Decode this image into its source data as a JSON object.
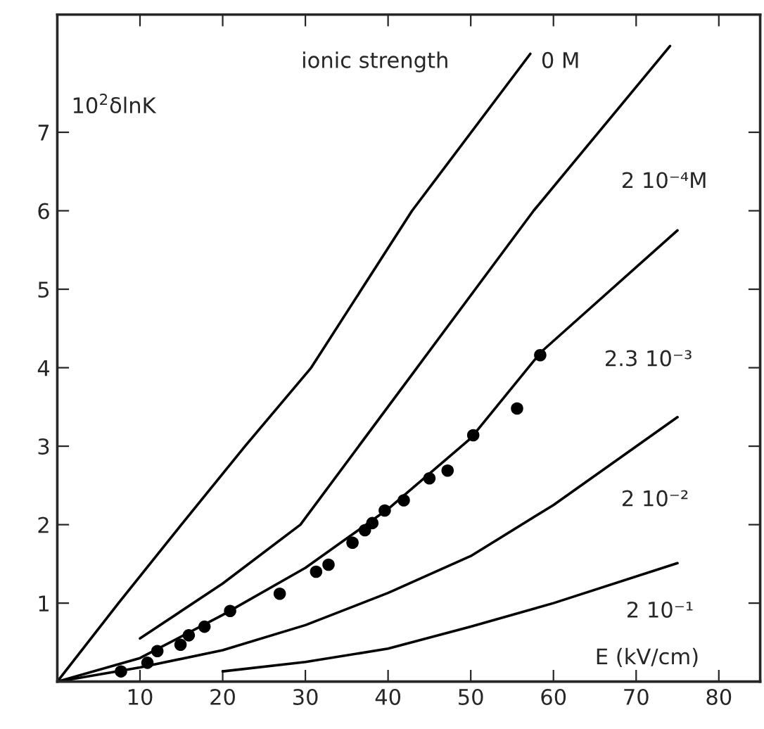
{
  "chart_data": {
    "type": "line",
    "xlabel": "E (kV/cm)",
    "ylabel": "10$^{2}$δlnK",
    "xlim": [
      0,
      85
    ],
    "ylim": [
      0,
      8.5
    ],
    "xticks": [
      10,
      20,
      30,
      40,
      50,
      60,
      70,
      80
    ],
    "yticks": [
      1,
      2,
      3,
      4,
      5,
      6,
      7
    ],
    "grid": false,
    "legend": false,
    "series": [
      {
        "name": "0 M",
        "color": "#000000",
        "x": [
          0,
          7.4,
          15,
          22.7,
          30.7,
          42.9,
          57.2
        ],
        "values": [
          0,
          1,
          2,
          3,
          4,
          6,
          8
        ]
      },
      {
        "name": "2 10⁻⁴M",
        "color": "#000000",
        "x": [
          10,
          20,
          29.4,
          43.5,
          57.6,
          74.1
        ],
        "values": [
          0.55,
          1.25,
          2,
          4,
          6,
          8.1
        ]
      },
      {
        "name": "2.3 10⁻³",
        "color": "#000000",
        "x": [
          0,
          10,
          20,
          30,
          40,
          50,
          58.5,
          75
        ],
        "values": [
          0,
          0.3,
          0.85,
          1.45,
          2.2,
          3.1,
          4.2,
          5.75
        ]
      },
      {
        "name": "2 10⁻²",
        "color": "#000000",
        "x": [
          0,
          10,
          20,
          30,
          40,
          50,
          60,
          75
        ],
        "values": [
          0,
          0.18,
          0.4,
          0.72,
          1.13,
          1.6,
          2.25,
          3.37
        ]
      },
      {
        "name": "2 10⁻¹",
        "color": "#000000",
        "x": [
          20,
          30,
          40,
          50,
          60,
          75
        ],
        "values": [
          0.13,
          0.25,
          0.42,
          0.7,
          1.0,
          1.51
        ]
      },
      {
        "type": "scatter",
        "color": "#000000",
        "marker": "circle",
        "x": [
          7.7,
          10.9,
          12.1,
          14.9,
          15.9,
          17.8,
          20.9,
          26.9,
          31.3,
          32.8,
          35.7,
          37.2,
          38.1,
          39.6,
          41.9,
          45.0,
          47.2,
          50.3,
          55.6,
          58.4
        ],
        "values": [
          0.13,
          0.24,
          0.39,
          0.47,
          0.59,
          0.7,
          0.9,
          1.12,
          1.4,
          1.49,
          1.77,
          1.93,
          2.02,
          2.18,
          2.31,
          2.59,
          2.69,
          3.14,
          3.48,
          4.16
        ]
      }
    ],
    "annotations": [
      "ionic strength"
    ]
  }
}
